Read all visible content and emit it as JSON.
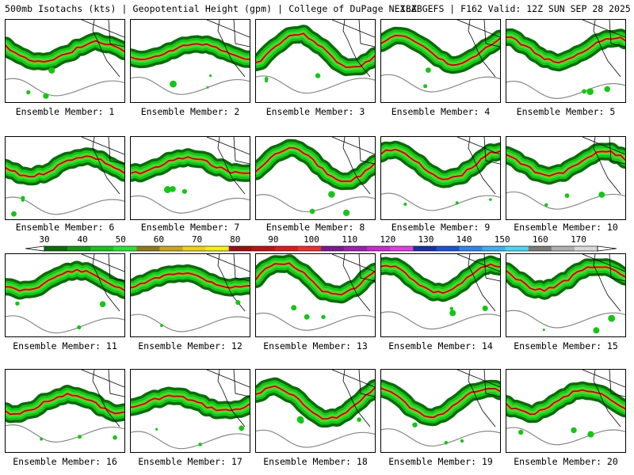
{
  "header": {
    "left_text": "500mb Isotachs (kts) | Geopotential Height (gpm) | College of DuPage NEXLAB",
    "right_text": "18Z GEFS | F162 Valid: 12Z SUN SEP 28 2025"
  },
  "colorbar": {
    "ticks": [
      "30",
      "40",
      "50",
      "60",
      "70",
      "80",
      "90",
      "100",
      "110",
      "120",
      "130",
      "140",
      "150",
      "160",
      "170"
    ],
    "colors": [
      "#0a6b0a",
      "#0f9a0f",
      "#17c417",
      "#2ee22e",
      "#8e7a16",
      "#c9a51e",
      "#eed11a",
      "#f4ee1a",
      "#9a1010",
      "#b81414",
      "#d51e1e",
      "#e83030",
      "#7a1a8e",
      "#a01eb4",
      "#c62ad6",
      "#e43ae8",
      "#1a2ea6",
      "#1e52d2",
      "#2e86e8",
      "#3ab2f2",
      "#4ad6f6",
      "#7a7a7a",
      "#b0b0b0",
      "#d8d8d8"
    ]
  },
  "members": [
    {
      "label": "Ensemble Member: 1",
      "seed": 1
    },
    {
      "label": "Ensemble Member: 2",
      "seed": 2
    },
    {
      "label": "Ensemble Member: 3",
      "seed": 3
    },
    {
      "label": "Ensemble Member: 4",
      "seed": 4
    },
    {
      "label": "Ensemble Member: 5",
      "seed": 5
    },
    {
      "label": "Ensemble Member: 6",
      "seed": 6
    },
    {
      "label": "Ensemble Member: 7",
      "seed": 7
    },
    {
      "label": "Ensemble Member: 8",
      "seed": 8
    },
    {
      "label": "Ensemble Member: 9",
      "seed": 9
    },
    {
      "label": "Ensemble Member: 10",
      "seed": 10
    },
    {
      "label": "Ensemble Member: 11",
      "seed": 11
    },
    {
      "label": "Ensemble Member: 12",
      "seed": 12
    },
    {
      "label": "Ensemble Member: 13",
      "seed": 13
    },
    {
      "label": "Ensemble Member: 14",
      "seed": 14
    },
    {
      "label": "Ensemble Member: 15",
      "seed": 15
    },
    {
      "label": "Ensemble Member: 16",
      "seed": 16
    },
    {
      "label": "Ensemble Member: 17",
      "seed": 17
    },
    {
      "label": "Ensemble Member: 18",
      "seed": 18
    },
    {
      "label": "Ensemble Member: 19",
      "seed": 19
    },
    {
      "label": "Ensemble Member: 20",
      "seed": 20
    }
  ]
}
